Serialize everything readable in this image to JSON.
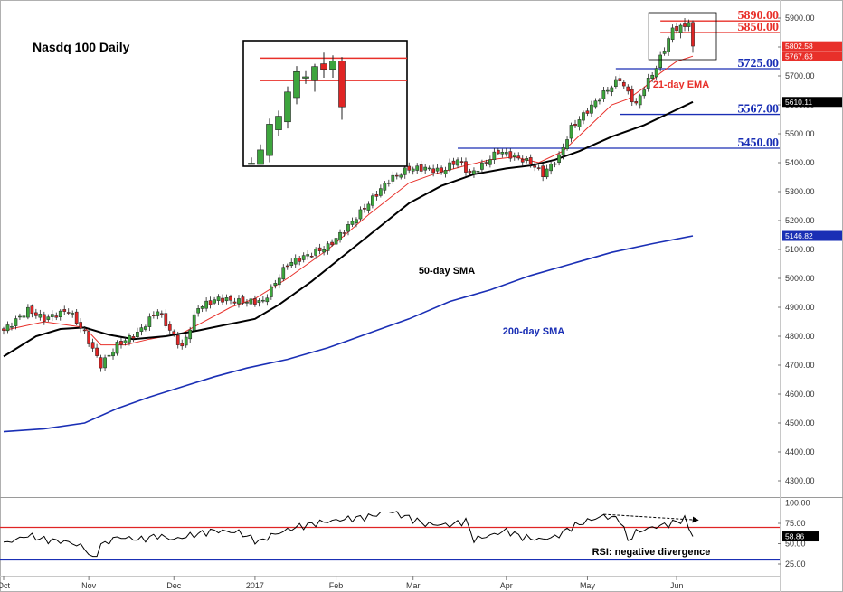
{
  "chart_data": {
    "type": "candlestick",
    "title": "Nasdq 100 Daily",
    "price_axis": {
      "min": 4250,
      "max": 5950,
      "ticks": [
        4300,
        4400,
        4500,
        4600,
        4700,
        4800,
        4900,
        5000,
        5100,
        5200,
        5300,
        5400,
        5500,
        5600,
        5700,
        5800,
        5900
      ],
      "tick_labels": [
        "4300.00",
        "4400.00",
        "4500.00",
        "4600.00",
        "4700.00",
        "4800.00",
        "4900.00",
        "5000.00",
        "5100.00",
        "5200.00",
        "5300.00",
        "5400.00",
        "5500.00",
        "5600.00",
        "5700.00",
        "5800.00",
        "5900.00"
      ]
    },
    "time_axis": {
      "labels": [
        {
          "label": "Oct",
          "day": 0
        },
        {
          "label": "Nov",
          "day": 21
        },
        {
          "label": "Dec",
          "day": 42
        },
        {
          "label": "2017",
          "day": 62
        },
        {
          "label": "Feb",
          "day": 82
        },
        {
          "label": "Mar",
          "day": 101
        },
        {
          "label": "Apr",
          "day": 124
        },
        {
          "label": "May",
          "day": 144
        },
        {
          "label": "Jun",
          "day": 166
        }
      ],
      "last_day": 170
    },
    "candle_anchors": [
      [
        0,
        4820
      ],
      [
        6,
        4890
      ],
      [
        10,
        4860
      ],
      [
        16,
        4890
      ],
      [
        20,
        4810
      ],
      [
        24,
        4700
      ],
      [
        28,
        4770
      ],
      [
        33,
        4810
      ],
      [
        38,
        4890
      ],
      [
        41,
        4820
      ],
      [
        44,
        4760
      ],
      [
        48,
        4900
      ],
      [
        53,
        4930
      ],
      [
        58,
        4920
      ],
      [
        64,
        4920
      ],
      [
        70,
        5050
      ],
      [
        75,
        5080
      ],
      [
        80,
        5110
      ],
      [
        85,
        5180
      ],
      [
        90,
        5260
      ],
      [
        95,
        5340
      ],
      [
        100,
        5380
      ],
      [
        104,
        5380
      ],
      [
        108,
        5370
      ],
      [
        112,
        5410
      ],
      [
        115,
        5360
      ],
      [
        118,
        5390
      ],
      [
        122,
        5440
      ],
      [
        126,
        5420
      ],
      [
        130,
        5400
      ],
      [
        133,
        5360
      ],
      [
        137,
        5420
      ],
      [
        140,
        5520
      ],
      [
        144,
        5580
      ],
      [
        148,
        5640
      ],
      [
        152,
        5690
      ],
      [
        154,
        5640
      ],
      [
        156,
        5600
      ],
      [
        158,
        5660
      ],
      [
        161,
        5730
      ],
      [
        165,
        5860
      ],
      [
        168,
        5880
      ],
      [
        169,
        5860
      ],
      [
        170,
        5790
      ]
    ],
    "key_candles": [
      {
        "day": 167,
        "open": 5850,
        "high": 5880,
        "low": 5830,
        "close": 5875
      },
      {
        "day": 168,
        "open": 5880,
        "high": 5900,
        "low": 5855,
        "close": 5870
      },
      {
        "day": 169,
        "open": 5870,
        "high": 5895,
        "low": 5855,
        "close": 5885
      },
      {
        "day": 170,
        "open": 5885,
        "high": 5892,
        "low": 5780,
        "close": 5803
      }
    ],
    "series": [
      {
        "name": "21-day EMA",
        "color": "#e8302a",
        "points": [
          [
            0,
            4820
          ],
          [
            10,
            4850
          ],
          [
            20,
            4830
          ],
          [
            24,
            4770
          ],
          [
            30,
            4770
          ],
          [
            36,
            4790
          ],
          [
            44,
            4810
          ],
          [
            48,
            4840
          ],
          [
            56,
            4900
          ],
          [
            62,
            4930
          ],
          [
            70,
            5000
          ],
          [
            80,
            5100
          ],
          [
            90,
            5220
          ],
          [
            100,
            5330
          ],
          [
            106,
            5360
          ],
          [
            114,
            5390
          ],
          [
            120,
            5410
          ],
          [
            126,
            5420
          ],
          [
            132,
            5400
          ],
          [
            138,
            5440
          ],
          [
            144,
            5520
          ],
          [
            150,
            5600
          ],
          [
            154,
            5620
          ],
          [
            158,
            5660
          ],
          [
            162,
            5710
          ],
          [
            166,
            5750
          ],
          [
            170,
            5768
          ]
        ]
      },
      {
        "name": "50-day SMA",
        "color": "#000000",
        "points": [
          [
            0,
            4730
          ],
          [
            8,
            4800
          ],
          [
            14,
            4825
          ],
          [
            20,
            4830
          ],
          [
            26,
            4805
          ],
          [
            32,
            4790
          ],
          [
            40,
            4800
          ],
          [
            48,
            4820
          ],
          [
            55,
            4840
          ],
          [
            62,
            4860
          ],
          [
            68,
            4910
          ],
          [
            76,
            4990
          ],
          [
            84,
            5080
          ],
          [
            92,
            5170
          ],
          [
            100,
            5260
          ],
          [
            108,
            5320
          ],
          [
            116,
            5360
          ],
          [
            124,
            5380
          ],
          [
            130,
            5390
          ],
          [
            136,
            5410
          ],
          [
            142,
            5440
          ],
          [
            150,
            5490
          ],
          [
            158,
            5530
          ],
          [
            164,
            5570
          ],
          [
            170,
            5610
          ]
        ]
      },
      {
        "name": "200-day SMA",
        "color": "#1a2fb5",
        "points": [
          [
            0,
            4470
          ],
          [
            10,
            4480
          ],
          [
            20,
            4500
          ],
          [
            28,
            4550
          ],
          [
            36,
            4590
          ],
          [
            44,
            4625
          ],
          [
            52,
            4660
          ],
          [
            60,
            4690
          ],
          [
            70,
            4720
          ],
          [
            80,
            4760
          ],
          [
            90,
            4810
          ],
          [
            100,
            4860
          ],
          [
            110,
            4920
          ],
          [
            120,
            4960
          ],
          [
            130,
            5010
          ],
          [
            140,
            5050
          ],
          [
            150,
            5090
          ],
          [
            160,
            5120
          ],
          [
            170,
            5147
          ]
        ]
      }
    ],
    "levels": [
      {
        "label": "5890.00",
        "value": 5890,
        "color": "#e8302a",
        "from_day": 162
      },
      {
        "label": "5850.00",
        "value": 5850,
        "color": "#e8302a",
        "from_day": 162
      },
      {
        "label": "5725.00",
        "value": 5725,
        "color": "#1a2fb5",
        "from_day": 151
      },
      {
        "label": "5567.00",
        "value": 5567,
        "color": "#1a2fb5",
        "from_day": 152
      },
      {
        "label": "5450.00",
        "value": 5450,
        "color": "#1a2fb5",
        "from_day": 112
      }
    ],
    "price_tags": [
      {
        "label": "5802.58",
        "value": 5802.58,
        "color": "#e8302a"
      },
      {
        "label": "5767.63",
        "value": 5767.63,
        "color": "#e8302a"
      },
      {
        "label": "5610.11",
        "value": 5610.11,
        "color": "#000000"
      },
      {
        "label": "5146.82",
        "value": 5146.82,
        "color": "#1a2fb5"
      }
    ],
    "annotations": [
      {
        "text": "21-day EMA",
        "color": "#e8302a"
      },
      {
        "text": "50-day SMA",
        "color": "#000000"
      },
      {
        "text": "200-day SMA",
        "color": "#1a2fb5"
      },
      {
        "text": "RSI: negative divergence",
        "color": "#000000"
      }
    ],
    "rsi": {
      "min": 15,
      "max": 105,
      "ticks": [
        25,
        50,
        75,
        100
      ],
      "tick_labels": [
        "25.00",
        "50.00",
        "75.00",
        "100.00"
      ],
      "overbought": 70,
      "oversold": 30,
      "last_value_label": "58.86",
      "last_value": 58.86,
      "points": [
        [
          0,
          50
        ],
        [
          6,
          60
        ],
        [
          10,
          55
        ],
        [
          16,
          52
        ],
        [
          20,
          45
        ],
        [
          22,
          30
        ],
        [
          24,
          48
        ],
        [
          28,
          58
        ],
        [
          34,
          55
        ],
        [
          38,
          60
        ],
        [
          42,
          55
        ],
        [
          46,
          60
        ],
        [
          52,
          66
        ],
        [
          58,
          64
        ],
        [
          63,
          52
        ],
        [
          66,
          60
        ],
        [
          72,
          70
        ],
        [
          78,
          76
        ],
        [
          84,
          80
        ],
        [
          90,
          83
        ],
        [
          95,
          90
        ],
        [
          100,
          82
        ],
        [
          104,
          74
        ],
        [
          110,
          73
        ],
        [
          114,
          78
        ],
        [
          116,
          55
        ],
        [
          120,
          60
        ],
        [
          124,
          66
        ],
        [
          128,
          58
        ],
        [
          132,
          55
        ],
        [
          136,
          58
        ],
        [
          140,
          70
        ],
        [
          144,
          78
        ],
        [
          148,
          84
        ],
        [
          152,
          80
        ],
        [
          154,
          54
        ],
        [
          156,
          64
        ],
        [
          160,
          70
        ],
        [
          164,
          74
        ],
        [
          168,
          80
        ],
        [
          170,
          60
        ]
      ],
      "divergence": {
        "from": [
          148,
          86
        ],
        "to": [
          170,
          79
        ]
      }
    },
    "inset": {
      "from_day": 160,
      "to_day": 170
    }
  }
}
